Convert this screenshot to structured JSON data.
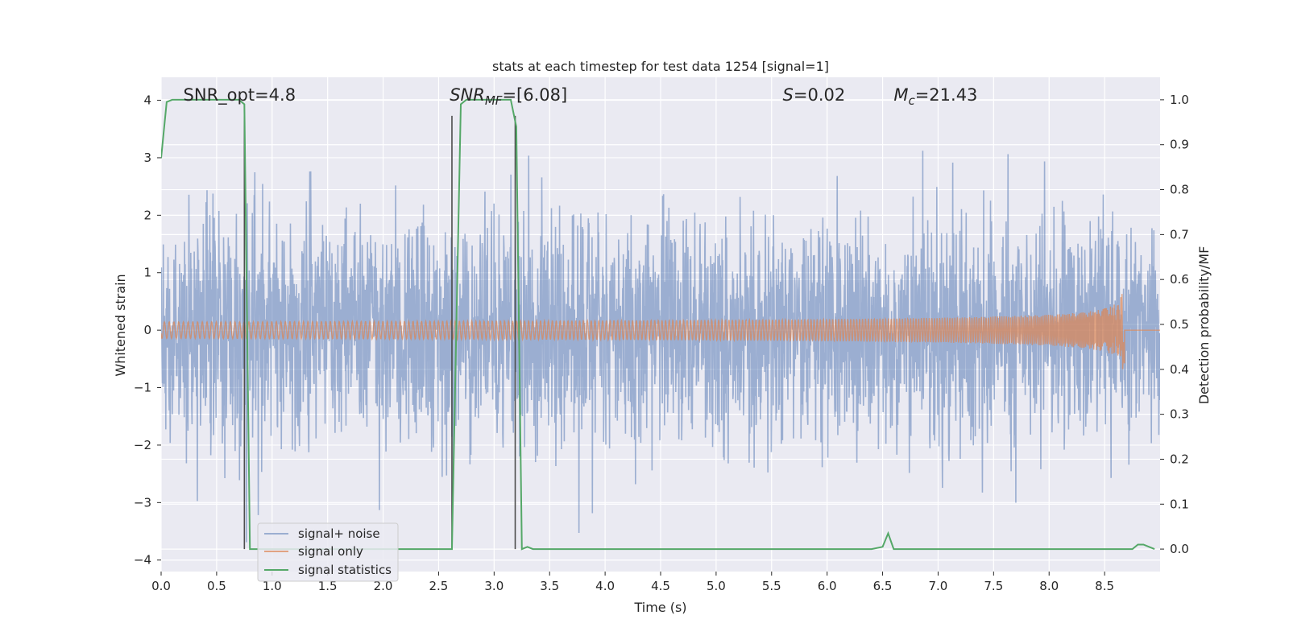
{
  "chart_data": {
    "type": "line",
    "title": "stats at each timestep for test data 1254 [signal=1]",
    "xlabel": "Time (s)",
    "ylabel": "Whitened strain",
    "ylabel_right": "Detection probability/MF",
    "xlim": [
      0.0,
      9.0
    ],
    "ylim": [
      -4.2,
      4.4
    ],
    "ylim_right": [
      -0.05,
      1.05
    ],
    "x_ticks": [
      "0.0",
      "0.5",
      "1.0",
      "1.5",
      "2.0",
      "2.5",
      "3.0",
      "3.5",
      "4.0",
      "4.5",
      "5.0",
      "5.5",
      "6.0",
      "6.5",
      "7.0",
      "7.5",
      "8.0",
      "8.5"
    ],
    "y_ticks": [
      "4",
      "3",
      "2",
      "1",
      "0",
      "−1",
      "−2",
      "−3",
      "−4"
    ],
    "y_ticks_right": [
      "1.0",
      "0.9",
      "0.8",
      "0.7",
      "0.6",
      "0.5",
      "0.4",
      "0.3",
      "0.2",
      "0.1",
      "0.0"
    ],
    "grid": true,
    "legend_placement": "lower-left",
    "colors": {
      "background": "#eaeaf2",
      "grid": "#ffffff",
      "noise": "#4c72b0",
      "signal": "#dd8452",
      "statistics": "#55a868",
      "vlines": "#4d4d4d"
    },
    "annotations": [
      {
        "text": "SNR_opt=4.8",
        "x": 0.2
      },
      {
        "text": "SNRMF=[6.08]",
        "x": 2.6,
        "math": "SNR_MF",
        "rest": "=[6.08]"
      },
      {
        "text": "S=0.02",
        "x": 5.6,
        "math": "S",
        "rest": "=0.02"
      },
      {
        "text": "Mc=21.43",
        "x": 6.6,
        "math": "M_c",
        "rest": "=21.43"
      }
    ],
    "vertical_lines_x": [
      0.75,
      2.62,
      3.19
    ],
    "series": [
      {
        "name": "signal+ noise",
        "description": "whitened strain noise samples, roughly Gaussian with std ~1 over full time range",
        "x_range": [
          0.0,
          9.0
        ],
        "std": 1.0
      },
      {
        "name": "signal only",
        "description": "chirp waveform growing in amplitude until merger",
        "x_range": [
          0.0,
          8.68
        ],
        "peak_amplitude": 1.0
      },
      {
        "name": "signal statistics",
        "axis": "right",
        "x": [
          0.0,
          0.05,
          0.1,
          0.2,
          0.3,
          0.4,
          0.5,
          0.6,
          0.7,
          0.75,
          0.8,
          0.85,
          1.0,
          1.5,
          2.0,
          2.5,
          2.62,
          2.66,
          2.7,
          2.75,
          2.8,
          3.0,
          3.1,
          3.15,
          3.2,
          3.25,
          3.3,
          3.35,
          4.0,
          5.0,
          6.0,
          6.4,
          6.5,
          6.55,
          6.6,
          6.7,
          7.0,
          8.0,
          8.5,
          8.75,
          8.8,
          8.85,
          8.9,
          8.95
        ],
        "values": [
          0.87,
          0.995,
          1.0,
          1.0,
          1.0,
          1.0,
          1.0,
          1.0,
          1.0,
          0.99,
          0.0,
          0.0,
          0.0,
          0.0,
          0.0,
          0.0,
          0.0,
          0.5,
          0.99,
          1.0,
          1.0,
          1.0,
          1.0,
          1.0,
          0.94,
          0.0,
          0.005,
          0.0,
          0.0,
          0.0,
          0.0,
          0.0,
          0.005,
          0.035,
          0.0,
          0.0,
          0.0,
          0.0,
          0.0,
          0.0,
          0.01,
          0.01,
          0.005,
          0.0
        ]
      }
    ]
  },
  "legend": {
    "noise_label": "signal+ noise",
    "signal_label": "signal only",
    "stats_label": "signal statistics"
  }
}
